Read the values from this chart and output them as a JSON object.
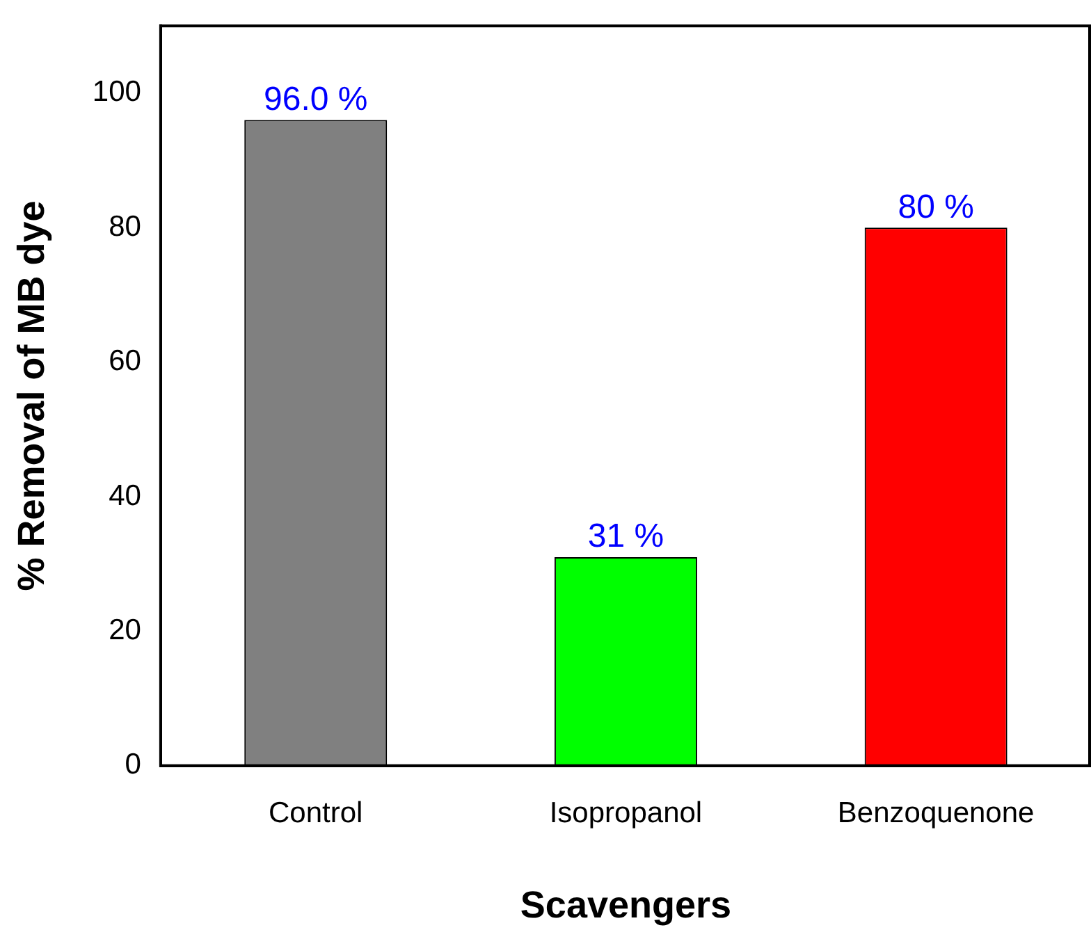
{
  "chart_data": {
    "type": "bar",
    "xlabel": "Scavengers",
    "ylabel": "% Removal of MB dye",
    "categories": [
      "Control",
      "Isopropanol",
      "Benzoquenone"
    ],
    "values": [
      96.0,
      31,
      80
    ],
    "colors": [
      "#808080",
      "#00ff00",
      "#ff0000"
    ],
    "value_labels": [
      "96.0 %",
      "31 %",
      "80 %"
    ],
    "ylim": [
      0,
      110
    ],
    "yticks": [
      0,
      20,
      40,
      60,
      80,
      100
    ],
    "grid": false,
    "legend": false
  }
}
